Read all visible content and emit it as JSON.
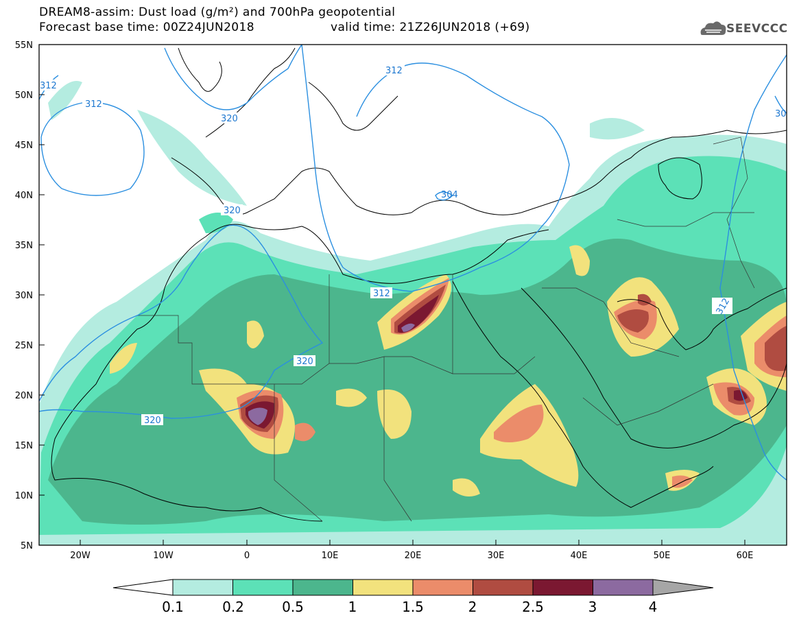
{
  "header": {
    "title_line1": "DREAM8-assim: Dust load (g/m²) and 700hPa geopotential",
    "title_line2": "Forecast base time: 00Z24JUN2018",
    "valid_time": "valid time: 21Z26JUN2018 (+69)"
  },
  "logo": {
    "icon": "cloud-logo-icon",
    "text": "SEEVCCC"
  },
  "axes": {
    "lat_labels": [
      "55N",
      "50N",
      "45N",
      "40N",
      "35N",
      "30N",
      "25N",
      "20N",
      "15N",
      "10N",
      "5N"
    ],
    "lon_labels": [
      "20W",
      "10W",
      "0",
      "10E",
      "20E",
      "30E",
      "40E",
      "50E",
      "60E"
    ]
  },
  "contours": {
    "labels": [
      "312",
      "312",
      "320",
      "312",
      "304",
      "320",
      "312",
      "312",
      "320",
      "320",
      "30"
    ]
  },
  "colorbar": {
    "labels": [
      "0.1",
      "0.2",
      "0.5",
      "1",
      "1.5",
      "2",
      "2.5",
      "3",
      "4"
    ],
    "colors": [
      "#b4ece0",
      "#5ce1b7",
      "#4cb68d",
      "#f2e27d",
      "#eb8c6a",
      "#b04c41",
      "#7b1831",
      "#8c6aa0",
      "#a6a6a6"
    ]
  }
}
